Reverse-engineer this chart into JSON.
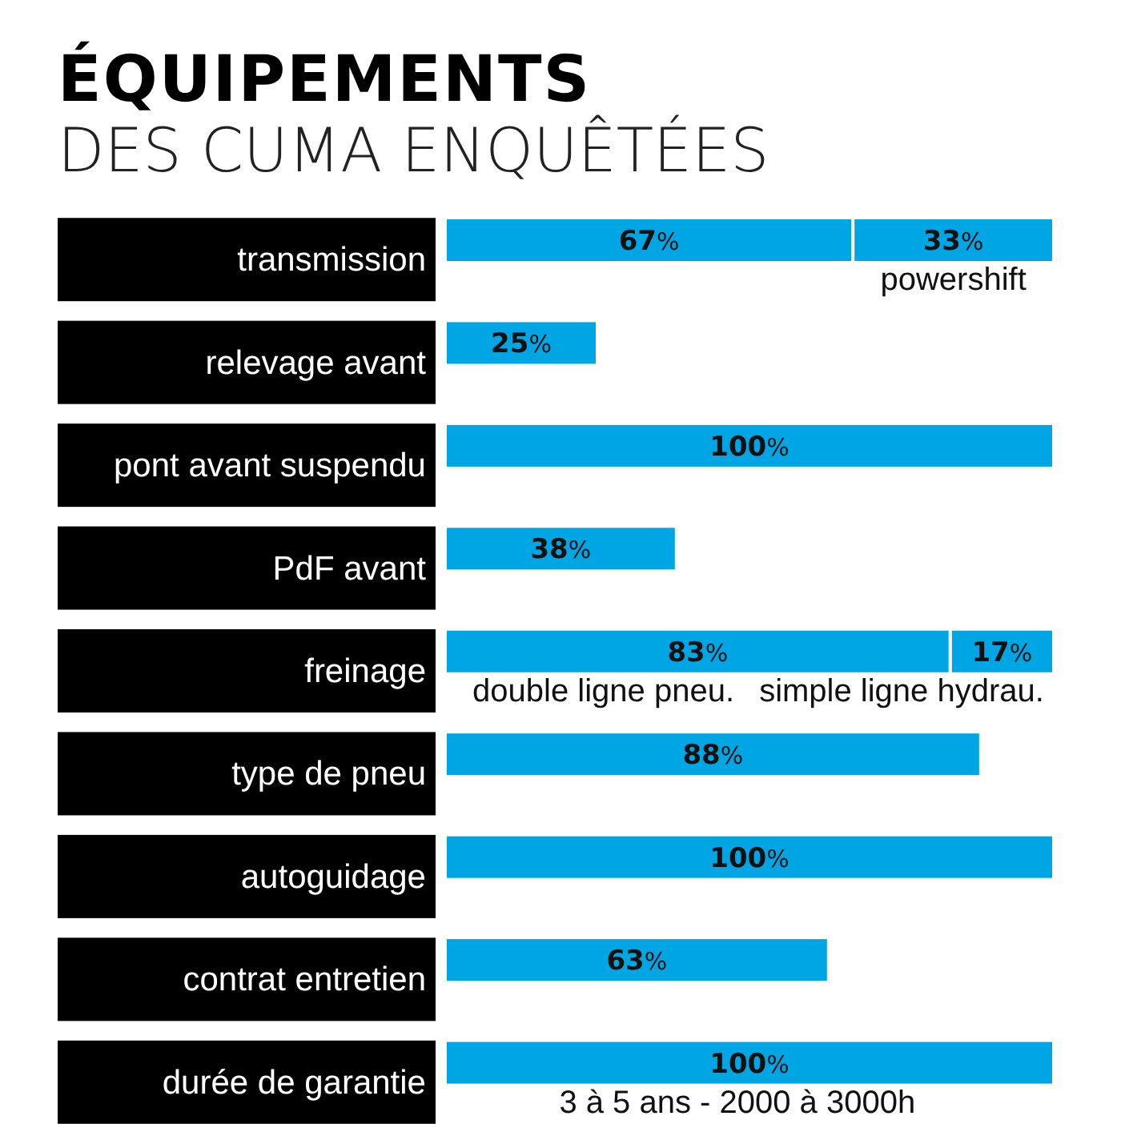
{
  "chart_data": {
    "type": "bar",
    "orientation": "horizontal",
    "stacked": true,
    "title": "ÉQUIPEMENTS",
    "subtitle": "DES CUMA ENQUÊTÉES",
    "categories": [
      "transmission",
      "relevage avant",
      "pont avant suspendu",
      "PdF avant",
      "freinage",
      "type de pneu",
      "autoguidage",
      "contrat entretien",
      "durée de garantie"
    ],
    "series": [
      {
        "color": "#00a6e4",
        "values": [
          67,
          25,
          100,
          38,
          83,
          88,
          100,
          63,
          100
        ],
        "value_labels": [
          "67%",
          "25%",
          "100%",
          "38%",
          "83%",
          "88%",
          "100%",
          "63%",
          "100%"
        ]
      },
      {
        "color": "#00a6e4",
        "values": [
          33,
          null,
          null,
          null,
          17,
          null,
          null,
          null,
          null
        ],
        "value_labels": [
          "33%",
          null,
          null,
          null,
          "17%",
          null,
          null,
          null,
          null
        ]
      }
    ],
    "annotations": [
      {
        "text": "powershift",
        "x": 83.5,
        "y": "transmission"
      },
      {
        "text": "double ligne pneu.",
        "x": 26,
        "y": "freinage"
      },
      {
        "text": "simple ligne hydrau.",
        "x": 75,
        "y": "freinage"
      },
      {
        "text": "3 à 5 ans - 2000 à 3000h",
        "x": 48,
        "y": "durée de garantie"
      }
    ],
    "xlim": [
      0,
      100
    ],
    "tick_labels": "y"
  }
}
